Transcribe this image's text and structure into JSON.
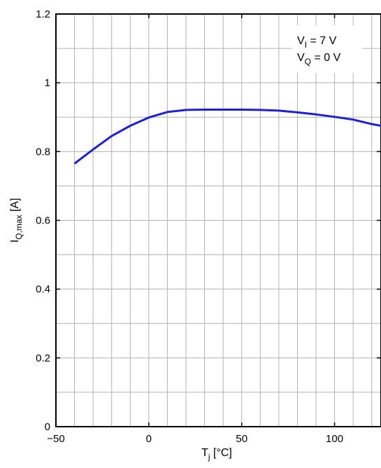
{
  "chart_data": {
    "type": "line",
    "xlabel": {
      "main": "T",
      "sub": "j",
      "tail": " [°C]"
    },
    "ylabel": {
      "main": "I",
      "sub": "Q,max",
      "tail": " [A]"
    },
    "xlim": [
      -50,
      125
    ],
    "ylim": [
      0,
      1.2
    ],
    "x_major_ticks": [
      -50,
      0,
      50,
      100
    ],
    "x_tick_labels": [
      "−50",
      "0",
      "50",
      "100"
    ],
    "y_major_ticks": [
      0,
      0.2,
      0.4,
      0.6,
      0.8,
      1.0,
      1.2
    ],
    "y_tick_labels": [
      "0",
      "0.2",
      "0.4",
      "0.6",
      "0.8",
      "1",
      "1.2"
    ],
    "x_grid_step": 10,
    "y_grid_step": 0.1,
    "grid": true,
    "line_color": "#1f1fd6",
    "annotations": [
      {
        "main": "V",
        "sub": "I",
        "tail": " = 7 V"
      },
      {
        "main": "V",
        "sub": "Q",
        "tail": " = 0 V"
      }
    ],
    "series": [
      {
        "x": [
          -40,
          -30,
          -20,
          -10,
          0,
          10,
          20,
          30,
          40,
          50,
          60,
          70,
          80,
          90,
          100,
          110,
          120,
          125
        ],
        "y": [
          0.765,
          0.806,
          0.845,
          0.875,
          0.899,
          0.915,
          0.921,
          0.922,
          0.922,
          0.922,
          0.921,
          0.919,
          0.914,
          0.908,
          0.901,
          0.893,
          0.88,
          0.875
        ]
      }
    ]
  }
}
